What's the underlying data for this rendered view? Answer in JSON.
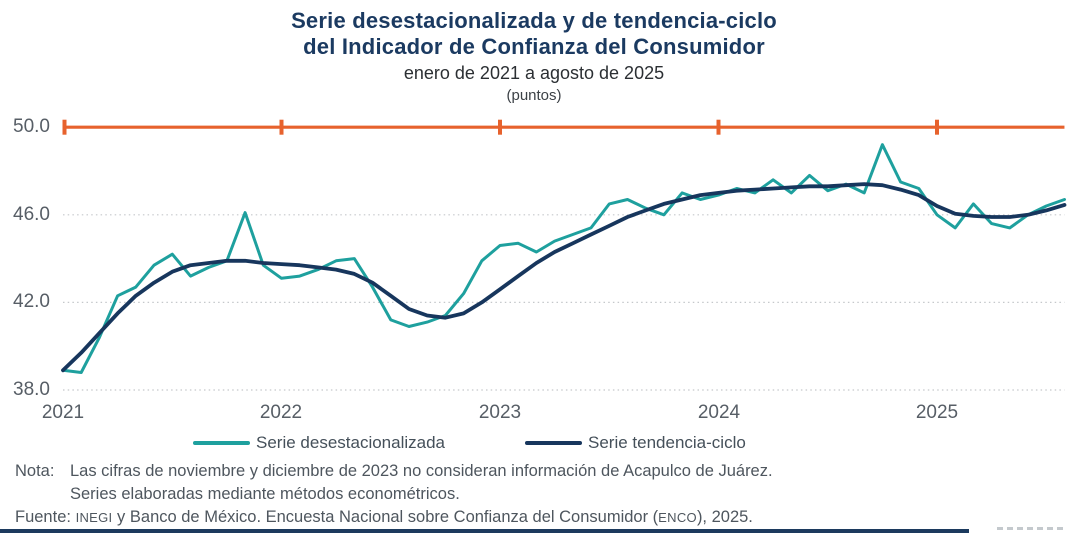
{
  "header": {
    "title_lines": [
      "Serie desestacionalizada y de tendencia-ciclo",
      "del Indicador de Confianza del Consumidor"
    ],
    "subtitle": "enero de 2021 a agosto de 2025",
    "unit_label": "(puntos)"
  },
  "chart_data": {
    "type": "line",
    "title": "Serie desestacionalizada y de tendencia-ciclo del Indicador de Confianza del Consumidor",
    "subtitle": "enero de 2021 a agosto de 2025",
    "unit": "puntos",
    "x_start": "enero 2021",
    "x_end": "agosto 2025",
    "x_frequency": "monthly",
    "xticks": [
      "2021",
      "2022",
      "2023",
      "2024",
      "2025"
    ],
    "yticks": [
      "50.0",
      "46.0",
      "42.0",
      "38.0"
    ],
    "ylim": [
      38,
      50
    ],
    "reference_line_y": 50,
    "reference_line_color": "#e7622d",
    "grid": "dotted horizontal lines at 46.0, 42.0, 38.0",
    "gridline_color": "#c5c8cb",
    "legend_position": "bottom",
    "series": [
      {
        "name": "Serie desestacionalizada",
        "color": "#1ea09e",
        "stroke_width": 3,
        "values": [
          38.9,
          38.8,
          40.4,
          42.3,
          42.7,
          43.7,
          44.2,
          43.2,
          43.6,
          43.9,
          46.1,
          43.7,
          43.1,
          43.2,
          43.5,
          43.9,
          44.0,
          42.7,
          41.2,
          40.9,
          41.1,
          41.4,
          42.4,
          43.9,
          44.6,
          44.7,
          44.3,
          44.8,
          45.1,
          45.4,
          46.5,
          46.7,
          46.3,
          46.0,
          47.0,
          46.7,
          46.9,
          47.2,
          47.0,
          47.6,
          47.0,
          47.8,
          47.1,
          47.4,
          47.0,
          49.2,
          47.5,
          47.2,
          46.0,
          45.4,
          46.5,
          45.6,
          45.4,
          46.0,
          46.4,
          46.7
        ]
      },
      {
        "name": "Serie tendencia-ciclo",
        "color": "#17365d",
        "stroke_width": 3.8,
        "values": [
          38.9,
          39.7,
          40.6,
          41.5,
          42.3,
          42.9,
          43.4,
          43.7,
          43.8,
          43.9,
          43.9,
          43.8,
          43.75,
          43.7,
          43.6,
          43.5,
          43.3,
          42.9,
          42.3,
          41.7,
          41.4,
          41.3,
          41.5,
          42.0,
          42.6,
          43.2,
          43.8,
          44.3,
          44.7,
          45.1,
          45.5,
          45.9,
          46.2,
          46.5,
          46.7,
          46.9,
          47.0,
          47.1,
          47.15,
          47.2,
          47.25,
          47.3,
          47.3,
          47.35,
          47.4,
          47.35,
          47.15,
          46.9,
          46.4,
          46.05,
          45.95,
          45.9,
          45.9,
          46.0,
          46.2,
          46.45
        ]
      }
    ]
  },
  "legend": {
    "items": [
      {
        "label": "Serie desestacionalizada",
        "color": "#1ea09e"
      },
      {
        "label": "Serie tendencia-ciclo",
        "color": "#17365d"
      }
    ]
  },
  "footnote": {
    "nota_label": "Nota:",
    "nota_line1": "Las cifras de noviembre y diciembre de 2023 no consideran información de Acapulco de Juárez.",
    "nota_line2": "Series elaboradas mediante métodos econométricos.",
    "fuente_label": "Fuente:",
    "fuente_inegi": "INEGI",
    "fuente_mid": " y Banco de México. Encuesta Nacional sobre Confianza del Consumidor (",
    "fuente_enco": "ENCO",
    "fuente_end": "), 2025."
  }
}
